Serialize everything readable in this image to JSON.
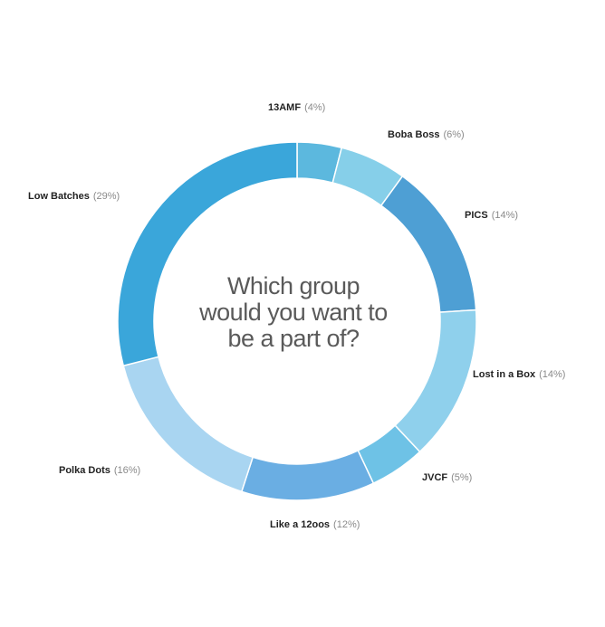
{
  "center_question": [
    "Which group",
    "would you want to",
    "be a part of?"
  ],
  "chart_data": {
    "type": "pie",
    "donut": true,
    "title": "Which group would you want to be a part of?",
    "start_angle_deg": 0,
    "clockwise": true,
    "slices": [
      {
        "name": "13AMF",
        "percent_label": "(4%)",
        "value": 4,
        "color": "#5cb8de"
      },
      {
        "name": "Boba Boss",
        "percent_label": "(6%)",
        "value": 6,
        "color": "#86cfe9"
      },
      {
        "name": "PICS",
        "percent_label": "(14%)",
        "value": 14,
        "color": "#4e9fd4"
      },
      {
        "name": "Lost in a Box",
        "percent_label": "(14%)",
        "value": 14,
        "color": "#8fd0ec"
      },
      {
        "name": "JVCF",
        "percent_label": "(5%)",
        "value": 5,
        "color": "#6ec2e6"
      },
      {
        "name": "Like a 12oos",
        "percent_label": "(12%)",
        "value": 12,
        "color": "#6aaee3"
      },
      {
        "name": "Polka Dots",
        "percent_label": "(16%)",
        "value": 16,
        "color": "#a9d5f1"
      },
      {
        "name": "Low Batches",
        "percent_label": "(29%)",
        "value": 29,
        "color": "#3aa6da"
      }
    ]
  }
}
